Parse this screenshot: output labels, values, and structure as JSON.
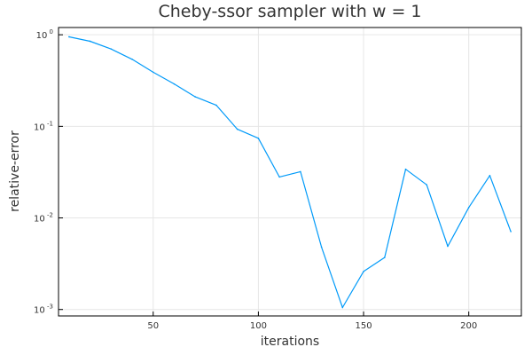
{
  "chart_data": {
    "type": "line",
    "title": "Cheby-ssor sampler with w = 1",
    "xlabel": "iterations",
    "ylabel": "relative-error",
    "xlim": [
      5,
      225
    ],
    "ylim": [
      0.00085,
      1.2
    ],
    "yscale": "log",
    "grid": true,
    "legend": "none",
    "x_ticks": [
      {
        "value": 50,
        "label": "50"
      },
      {
        "value": 100,
        "label": "100"
      },
      {
        "value": 150,
        "label": "150"
      },
      {
        "value": 200,
        "label": "200"
      }
    ],
    "y_ticks": [
      {
        "value": 1,
        "base": "10",
        "exp": "0"
      },
      {
        "value": 0.1,
        "base": "10",
        "exp": "-1"
      },
      {
        "value": 0.01,
        "base": "10",
        "exp": "-2"
      },
      {
        "value": 0.001,
        "base": "10",
        "exp": "-3"
      }
    ],
    "series": [
      {
        "color": "#009af9",
        "x": [
          10,
          20,
          30,
          40,
          50,
          60,
          70,
          80,
          90,
          100,
          110,
          120,
          130,
          140,
          150,
          160,
          170,
          180,
          190,
          200,
          210,
          220
        ],
        "y": [
          0.95,
          0.85,
          0.7,
          0.54,
          0.39,
          0.29,
          0.21,
          0.17,
          0.093,
          0.074,
          0.028,
          0.032,
          0.0048,
          0.00105,
          0.0026,
          0.0037,
          0.034,
          0.023,
          0.0049,
          0.013,
          0.029,
          0.0071
        ]
      }
    ]
  }
}
